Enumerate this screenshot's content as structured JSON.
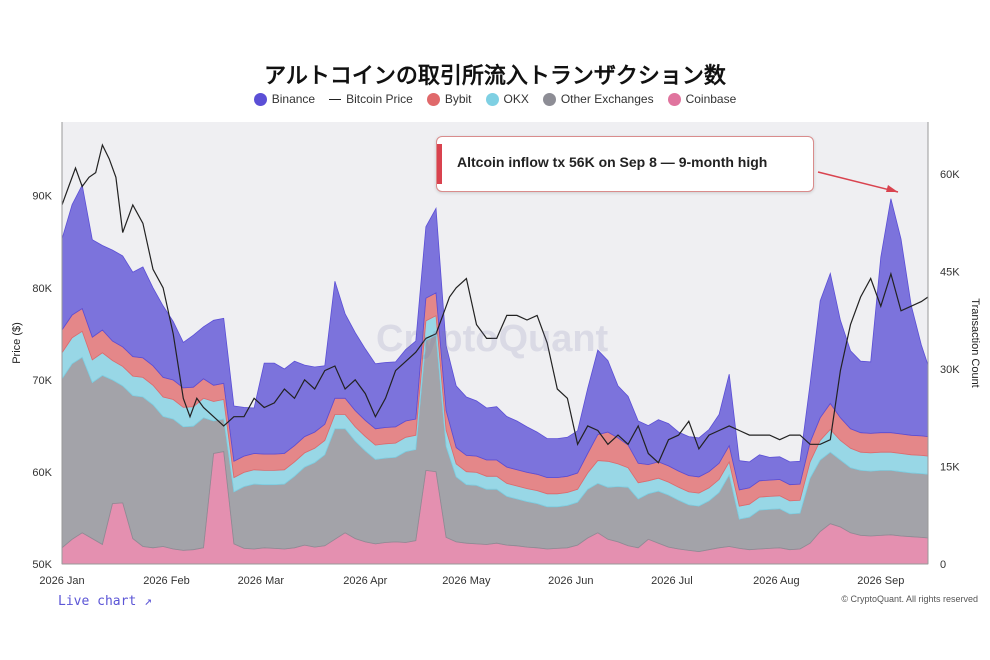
{
  "title": "アルトコインの取引所流入トランザクション数",
  "legend": [
    {
      "label": "Binance",
      "color": "#5b4fd6",
      "kind": "dot"
    },
    {
      "label": "Bitcoin Price",
      "color": "#222222",
      "kind": "line"
    },
    {
      "label": "Bybit",
      "color": "#e0696b",
      "kind": "dot"
    },
    {
      "label": "OKX",
      "color": "#7fd0e3",
      "kind": "dot"
    },
    {
      "label": "Other Exchanges",
      "color": "#8d8d95",
      "kind": "dot"
    },
    {
      "label": "Coinbase",
      "color": "#e0749e",
      "kind": "dot"
    }
  ],
  "annotation": {
    "text": "Altcoin inflow tx 56K on Sep 8 — 9-month high"
  },
  "watermark": "CryptoQuant",
  "footer": {
    "live_chart": "Live chart ↗",
    "copyright": "© CryptoQuant. All rights reserved"
  },
  "chart_data": {
    "type": "area",
    "stacked": true,
    "title": "アルトコインの取引所流入トランザクション数",
    "xlabel": "",
    "ylabel_left": "Price ($)",
    "ylabel_right": "Transaction Count",
    "y_left_lim": [
      50000,
      98000
    ],
    "y_right_lim": [
      0,
      68000
    ],
    "y_left_ticks": [
      "50K",
      "60K",
      "70K",
      "80K",
      "90K"
    ],
    "y_left_tick_values": [
      50000,
      60000,
      70000,
      80000,
      90000
    ],
    "y_right_ticks": [
      "0",
      "15K",
      "30K",
      "45K",
      "60K"
    ],
    "y_right_tick_values": [
      0,
      15000,
      30000,
      45000,
      60000
    ],
    "x_ticks": [
      "2026 Jan",
      "2026 Feb",
      "2026 Mar",
      "2026 Apr",
      "2026 May",
      "2026 Jun",
      "2026 Jul",
      "2026 Aug",
      "2026 Sep"
    ],
    "x_tick_days": [
      0,
      31,
      59,
      90,
      120,
      151,
      181,
      212,
      243
    ],
    "x_day_range": [
      0,
      257
    ],
    "grid": false,
    "legend_position": "top",
    "days": [
      0,
      3,
      6,
      9,
      12,
      15,
      18,
      21,
      24,
      27,
      30,
      33,
      36,
      39,
      42,
      45,
      48,
      51,
      54,
      57,
      60,
      63,
      66,
      69,
      72,
      75,
      78,
      81,
      84,
      87,
      90,
      93,
      96,
      99,
      102,
      105,
      108,
      111,
      114,
      117,
      120,
      123,
      126,
      129,
      132,
      135,
      138,
      141,
      144,
      147,
      150,
      153,
      156,
      159,
      162,
      165,
      168,
      171,
      174,
      177,
      180,
      183,
      186,
      189,
      192,
      195,
      198,
      201,
      204,
      207,
      210,
      213,
      216,
      219,
      222,
      225,
      228,
      231,
      234,
      237,
      240,
      243,
      246,
      249,
      252,
      255,
      257
    ],
    "series": [
      {
        "name": "Coinbase",
        "color": "#e0749e",
        "values": [
          2500,
          3800,
          4800,
          3900,
          3000,
          9300,
          9400,
          3900,
          2700,
          2500,
          2700,
          2300,
          2100,
          2200,
          2500,
          17000,
          17300,
          3100,
          2400,
          2300,
          2500,
          2400,
          2300,
          2500,
          2900,
          2600,
          2800,
          3800,
          4800,
          3900,
          3400,
          3100,
          3300,
          3400,
          3300,
          3600,
          14400,
          14200,
          4100,
          3400,
          3200,
          3100,
          3000,
          3200,
          2900,
          2800,
          2600,
          2500,
          2300,
          2400,
          2500,
          2900,
          4000,
          4800,
          3800,
          3400,
          2800,
          2500,
          3800,
          3200,
          2600,
          2300,
          2100,
          1900,
          2200,
          2500,
          2700,
          2400,
          2200,
          2300,
          2400,
          2500,
          2200,
          2300,
          3200,
          5000,
          6200,
          5700,
          4800,
          4400,
          4300,
          4400,
          4500,
          4300,
          4200,
          4100,
          4000
        ]
      },
      {
        "name": "Other Exchanges",
        "color": "#8d8d95",
        "values": [
          26000,
          27000,
          27000,
          24000,
          26000,
          19000,
          18000,
          22000,
          23000,
          22000,
          20000,
          20000,
          19000,
          19000,
          20000,
          5000,
          5000,
          8000,
          9500,
          10000,
          9700,
          9800,
          10000,
          11000,
          12000,
          13000,
          14000,
          17000,
          16000,
          15000,
          14000,
          13000,
          13000,
          13000,
          14000,
          14000,
          20000,
          21000,
          14000,
          10000,
          9000,
          9000,
          8500,
          8300,
          7500,
          7200,
          7000,
          6800,
          6500,
          6400,
          6500,
          6600,
          7500,
          7600,
          8000,
          8500,
          9000,
          7500,
          7000,
          8000,
          8000,
          7500,
          7000,
          7000,
          7500,
          8500,
          11000,
          4500,
          5000,
          6000,
          6000,
          6000,
          5500,
          5500,
          10000,
          11000,
          11000,
          10300,
          10000,
          10000,
          10000,
          10000,
          9900,
          9900,
          9800,
          9800,
          9800
        ]
      },
      {
        "name": "OKX",
        "color": "#7fd0e3",
        "values": [
          4000,
          4000,
          4000,
          3500,
          3500,
          3000,
          3000,
          3000,
          3000,
          3000,
          3000,
          3000,
          3000,
          3000,
          3000,
          3000,
          3000,
          2200,
          2200,
          2200,
          2200,
          2200,
          2200,
          2200,
          2200,
          2200,
          2200,
          2200,
          2200,
          2200,
          2200,
          2200,
          2200,
          2200,
          2200,
          2200,
          3000,
          3000,
          2500,
          2000,
          2000,
          2000,
          2000,
          2000,
          2000,
          2000,
          2000,
          2000,
          2000,
          2000,
          2000,
          2000,
          2500,
          3500,
          4000,
          3500,
          3000,
          2500,
          2000,
          2000,
          2000,
          2000,
          2000,
          2000,
          2000,
          2000,
          2000,
          2000,
          2000,
          2000,
          2000,
          2000,
          2000,
          2000,
          2500,
          3000,
          3500,
          3000,
          3000,
          2800,
          2800,
          2800,
          2800,
          2800,
          2800,
          2800,
          2800
        ]
      },
      {
        "name": "Bybit",
        "color": "#e0696b",
        "values": [
          3500,
          3500,
          3500,
          3500,
          3500,
          3000,
          3000,
          3000,
          3000,
          3000,
          3000,
          3000,
          3000,
          3000,
          3000,
          2500,
          2500,
          2500,
          2500,
          2500,
          2500,
          2500,
          2500,
          2500,
          2500,
          2500,
          2500,
          2500,
          2500,
          2500,
          2500,
          2500,
          2500,
          2500,
          2500,
          2500,
          3500,
          3500,
          3000,
          2500,
          2500,
          2500,
          2500,
          2500,
          2500,
          2500,
          2500,
          2500,
          2500,
          2500,
          2500,
          2500,
          3000,
          4000,
          4500,
          4000,
          3500,
          3000,
          2500,
          2500,
          2500,
          2500,
          2500,
          2500,
          2500,
          2500,
          2500,
          2500,
          2500,
          2500,
          2500,
          2500,
          2500,
          2500,
          3000,
          3500,
          4000,
          3500,
          3000,
          3000,
          3000,
          3000,
          3000,
          3000,
          3000,
          3000,
          3000
        ]
      },
      {
        "name": "Binance",
        "color": "#5b4fd6",
        "values": [
          14000,
          17000,
          19000,
          15000,
          13000,
          14000,
          14000,
          13000,
          14000,
          12000,
          11000,
          9000,
          7000,
          8000,
          8000,
          10000,
          10000,
          8500,
          7500,
          7000,
          14000,
          14000,
          13000,
          13000,
          11000,
          10000,
          9000,
          18000,
          13000,
          12000,
          11000,
          10000,
          10000,
          10000,
          11000,
          12000,
          11000,
          13000,
          10000,
          9500,
          9000,
          8500,
          8000,
          8200,
          7800,
          7500,
          7000,
          6500,
          6000,
          6000,
          6000,
          6500,
          10000,
          13000,
          11000,
          8000,
          7500,
          6500,
          6000,
          6500,
          6500,
          6000,
          6000,
          6000,
          6500,
          7500,
          11000,
          4500,
          4000,
          4000,
          3500,
          3500,
          3500,
          3500,
          9000,
          18000,
          20000,
          15000,
          12000,
          11000,
          11000,
          27000,
          36000,
          30000,
          20000,
          14000,
          11000
        ]
      }
    ],
    "price_series": {
      "name": "Bitcoin Price",
      "color": "#222222",
      "days": [
        0,
        2,
        4,
        6,
        8,
        10,
        12,
        14,
        16,
        18,
        21,
        24,
        27,
        30,
        33,
        36,
        38,
        40,
        42,
        45,
        48,
        51,
        54,
        57,
        60,
        63,
        66,
        69,
        72,
        75,
        78,
        81,
        84,
        87,
        90,
        93,
        96,
        99,
        102,
        105,
        108,
        111,
        113,
        115,
        117,
        120,
        123,
        126,
        129,
        132,
        135,
        138,
        141,
        144,
        147,
        150,
        153,
        156,
        159,
        162,
        165,
        168,
        171,
        174,
        177,
        180,
        183,
        186,
        189,
        192,
        195,
        198,
        201,
        204,
        207,
        210,
        213,
        216,
        219,
        222,
        225,
        228,
        231,
        234,
        237,
        240,
        243,
        246,
        249,
        252,
        255,
        257
      ],
      "values": [
        89000,
        91000,
        93000,
        91000,
        92000,
        92500,
        95500,
        94000,
        92000,
        86000,
        89000,
        87000,
        82000,
        80000,
        75000,
        68000,
        66000,
        68000,
        67000,
        66000,
        65000,
        66000,
        66000,
        68000,
        67000,
        67500,
        69000,
        68000,
        70000,
        69000,
        71000,
        71500,
        69000,
        70000,
        68500,
        66000,
        68000,
        71000,
        72000,
        73000,
        74500,
        75000,
        77000,
        79000,
        80000,
        81000,
        76000,
        74500,
        74500,
        77000,
        77000,
        76500,
        77000,
        74000,
        69000,
        68000,
        63000,
        65000,
        64500,
        63000,
        64000,
        63000,
        65000,
        62000,
        61000,
        63500,
        64000,
        65500,
        62500,
        64000,
        64500,
        65000,
        64500,
        64000,
        64000,
        64000,
        63500,
        64000,
        64000,
        63000,
        63000,
        63500,
        71000,
        76000,
        79000,
        81000,
        78000,
        81500,
        77500,
        78000,
        78500,
        79000
      ]
    }
  }
}
